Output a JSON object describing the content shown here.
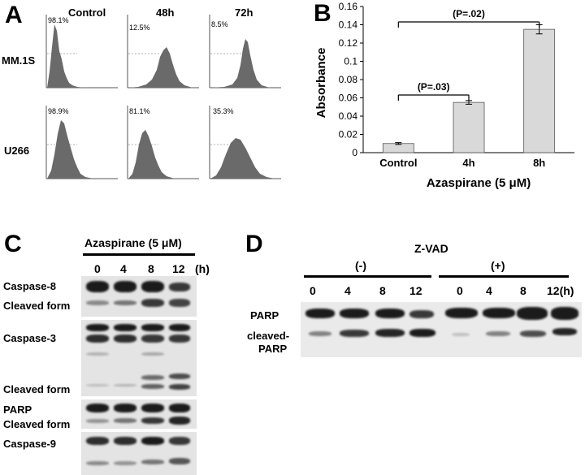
{
  "panelA": {
    "letter": "A",
    "columns": [
      "Control",
      "48h",
      "72h"
    ],
    "rows": [
      {
        "label": "MM.1S",
        "percents": [
          "98.1%",
          "12.5%",
          "8.5%"
        ]
      },
      {
        "label": "U266",
        "percents": [
          "98.9%",
          "81.1%",
          "35.3%"
        ]
      }
    ]
  },
  "panelB": {
    "letter": "B",
    "chart_data": {
      "type": "bar",
      "categories": [
        "Control",
        "4h",
        "8h"
      ],
      "values": [
        0.01,
        0.055,
        0.135
      ],
      "errors": [
        0.001,
        0.002,
        0.005
      ],
      "ylabel": "Absorbance",
      "xlabel": "Azaspirane (5 μM)",
      "ylim": [
        0,
        0.16
      ],
      "yticks": [
        "0",
        "0.02",
        "0.04",
        "0.06",
        "0.08",
        "0.1",
        "0.12",
        "0.14",
        "0.16"
      ],
      "annotations": [
        {
          "text": "(P=.03)",
          "from": "Control",
          "to": "4h"
        },
        {
          "text": "(P=.02)",
          "from": "Control",
          "to": "8h"
        }
      ],
      "bar_color": "#d9d9d9"
    }
  },
  "panelC": {
    "letter": "C",
    "title": "Azaspirane (5 μM)",
    "lanes": [
      "0",
      "4",
      "8",
      "12"
    ],
    "unit": "(h)",
    "labels": [
      "Caspase-8",
      "Cleaved form",
      "Caspase-3",
      "Cleaved form",
      "PARP",
      "Cleaved form",
      "Caspase-9"
    ]
  },
  "panelD": {
    "letter": "D",
    "title": "Z-VAD",
    "groups": [
      "(-)",
      "(+)"
    ],
    "lanes_minus": [
      "0",
      "4",
      "8",
      "12"
    ],
    "lanes_plus": [
      "0",
      "4",
      "8"
    ],
    "last_lane_plus": "12(h)",
    "labels": [
      "PARP",
      "cleaved-",
      "PARP"
    ]
  }
}
